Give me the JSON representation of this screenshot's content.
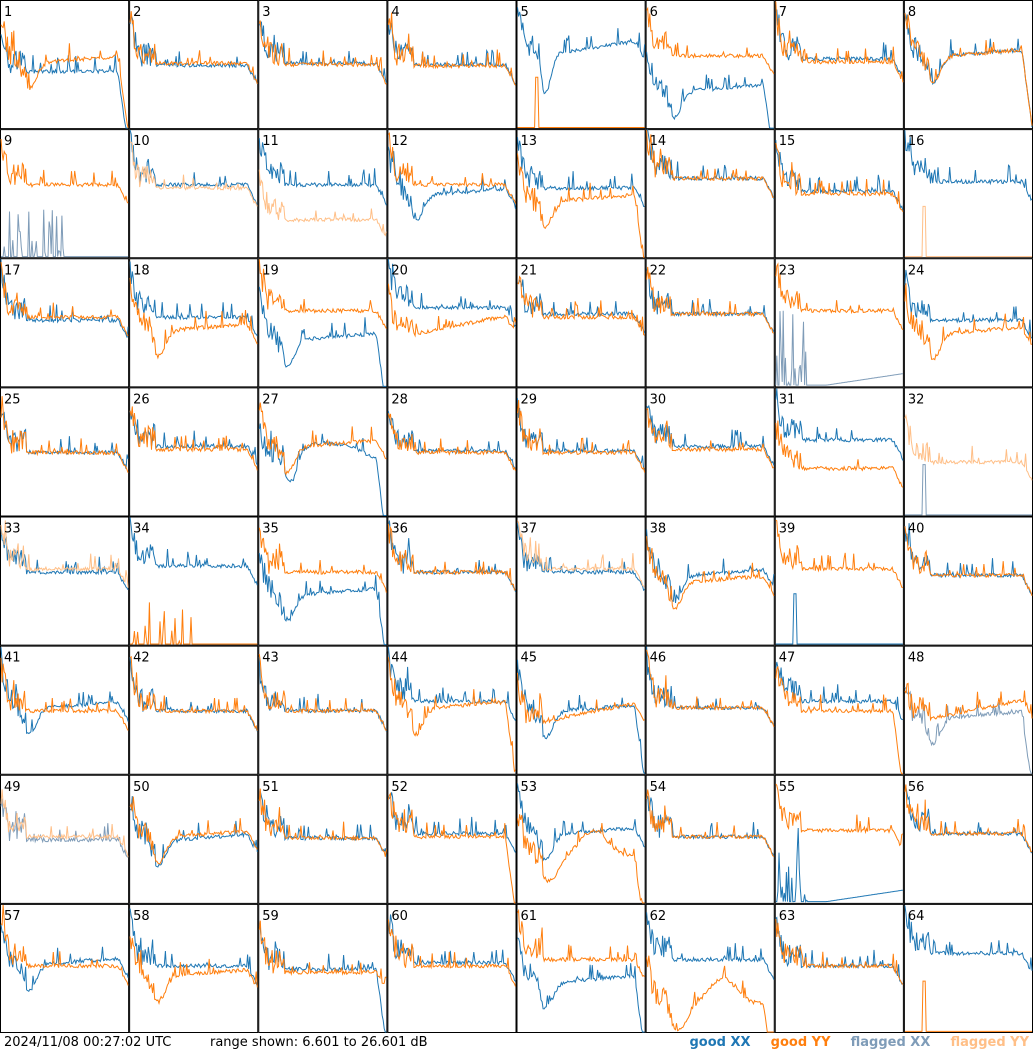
{
  "footer": {
    "timestamp": "2024/11/08 00:27:02 UTC",
    "range_text": "range shown: 6.601 to 26.601 dB"
  },
  "legend": [
    {
      "label": "good XX",
      "color": "#1f77b4"
    },
    {
      "label": "good YY",
      "color": "#ff7f0e"
    },
    {
      "label": "flagged XX",
      "color": "#7f9cb8"
    },
    {
      "label": "flagged YY",
      "color": "#ffbf87"
    }
  ],
  "chart_data": {
    "type": "line",
    "layout": "small-multiples 8x8",
    "ylim_db": [
      6.601,
      26.601
    ],
    "tiles": [
      {
        "id": "1",
        "xx": {
          "flag": false,
          "shape": "flat",
          "level": 15.5,
          "drop": true
        },
        "yy": {
          "flag": false,
          "shape": "dip",
          "level": 16.5,
          "drop": true
        }
      },
      {
        "id": "2",
        "xx": {
          "flag": false,
          "shape": "flat",
          "level": 16.5
        },
        "yy": {
          "flag": false,
          "shape": "flat",
          "level": 16.8
        }
      },
      {
        "id": "3",
        "xx": {
          "flag": false,
          "shape": "flat",
          "level": 16.8
        },
        "yy": {
          "flag": false,
          "shape": "flat",
          "level": 16.6
        }
      },
      {
        "id": "4",
        "xx": {
          "flag": false,
          "shape": "flat",
          "level": 16.6
        },
        "yy": {
          "flag": false,
          "shape": "flat",
          "level": 16.4
        }
      },
      {
        "id": "5",
        "xx": {
          "flag": false,
          "shape": "dip5",
          "level": 19.5
        },
        "yy": {
          "flag": false,
          "shape": "zero_spike",
          "level": 7.0
        }
      },
      {
        "id": "6",
        "xx": {
          "flag": false,
          "shape": "dip",
          "level": 12.0,
          "drop": true
        },
        "yy": {
          "flag": false,
          "shape": "flat",
          "level": 18.0
        }
      },
      {
        "id": "7",
        "xx": {
          "flag": false,
          "shape": "flat",
          "level": 17.5
        },
        "yy": {
          "flag": false,
          "shape": "flat",
          "level": 17.0
        }
      },
      {
        "id": "8",
        "xx": {
          "flag": false,
          "shape": "dip",
          "level": 17.5,
          "drop": true
        },
        "yy": {
          "flag": false,
          "shape": "dip",
          "level": 17.5,
          "drop": true
        }
      },
      {
        "id": "9",
        "xx": {
          "flag": true,
          "shape": "junk",
          "level": 7.0
        },
        "yy": {
          "flag": false,
          "shape": "flat",
          "level": 18.0
        }
      },
      {
        "id": "10",
        "xx": {
          "flag": false,
          "shape": "flat",
          "level": 18.0
        },
        "yy": {
          "flag": true,
          "shape": "flat",
          "level": 17.5
        }
      },
      {
        "id": "11",
        "xx": {
          "flag": false,
          "shape": "flat",
          "level": 18.0
        },
        "yy": {
          "flag": true,
          "shape": "low",
          "level": 12.5
        }
      },
      {
        "id": "12",
        "xx": {
          "flag": false,
          "shape": "dip",
          "level": 16.0
        },
        "yy": {
          "flag": false,
          "shape": "flat",
          "level": 18.0
        }
      },
      {
        "id": "13",
        "xx": {
          "flag": false,
          "shape": "flat",
          "level": 17.5
        },
        "yy": {
          "flag": false,
          "shape": "dip",
          "level": 15.0,
          "drop": true
        }
      },
      {
        "id": "14",
        "xx": {
          "flag": false,
          "shape": "flat",
          "level": 19.0
        },
        "yy": {
          "flag": false,
          "shape": "flat",
          "level": 19.0
        }
      },
      {
        "id": "15",
        "xx": {
          "flag": false,
          "shape": "flat",
          "level": 17.0
        },
        "yy": {
          "flag": false,
          "shape": "flat",
          "level": 16.6
        }
      },
      {
        "id": "16",
        "xx": {
          "flag": false,
          "shape": "flat",
          "level": 18.5
        },
        "yy": {
          "flag": true,
          "shape": "zero_spike",
          "level": 7.0
        }
      },
      {
        "id": "17",
        "xx": {
          "flag": false,
          "shape": "flat",
          "level": 17.0
        },
        "yy": {
          "flag": false,
          "shape": "flat",
          "level": 17.5
        }
      },
      {
        "id": "18",
        "xx": {
          "flag": false,
          "shape": "flat",
          "level": 17.5
        },
        "yy": {
          "flag": false,
          "shape": "dip",
          "level": 15.0
        }
      },
      {
        "id": "19",
        "xx": {
          "flag": false,
          "shape": "dip",
          "level": 13.5,
          "drop": true
        },
        "yy": {
          "flag": false,
          "shape": "flat",
          "level": 18.5
        }
      },
      {
        "id": "20",
        "xx": {
          "flag": false,
          "shape": "flat",
          "level": 19.0
        },
        "yy": {
          "flag": false,
          "shape": "rise",
          "level": 16.0
        }
      },
      {
        "id": "21",
        "xx": {
          "flag": false,
          "shape": "flat",
          "level": 18.0
        },
        "yy": {
          "flag": false,
          "shape": "flat",
          "level": 17.5
        }
      },
      {
        "id": "22",
        "xx": {
          "flag": false,
          "shape": "flat",
          "level": 18.0
        },
        "yy": {
          "flag": false,
          "shape": "flat",
          "level": 18.0
        }
      },
      {
        "id": "23",
        "xx": {
          "flag": true,
          "shape": "junk_rise",
          "level": 7.0
        },
        "yy": {
          "flag": false,
          "shape": "flat",
          "level": 18.5
        }
      },
      {
        "id": "24",
        "xx": {
          "flag": false,
          "shape": "flat",
          "level": 17.0
        },
        "yy": {
          "flag": false,
          "shape": "dip",
          "level": 14.5
        }
      },
      {
        "id": "25",
        "xx": {
          "flag": false,
          "shape": "flat",
          "level": 16.5
        },
        "yy": {
          "flag": false,
          "shape": "flat",
          "level": 16.5
        }
      },
      {
        "id": "26",
        "xx": {
          "flag": false,
          "shape": "flat",
          "level": 17.5
        },
        "yy": {
          "flag": false,
          "shape": "flat",
          "level": 17.0
        }
      },
      {
        "id": "27",
        "xx": {
          "flag": false,
          "shape": "dip27",
          "level": 14.0,
          "drop": true
        },
        "yy": {
          "flag": false,
          "shape": "dip",
          "level": 17.0
        }
      },
      {
        "id": "28",
        "xx": {
          "flag": false,
          "shape": "flat",
          "level": 16.8
        },
        "yy": {
          "flag": false,
          "shape": "flat",
          "level": 16.5
        }
      },
      {
        "id": "29",
        "xx": {
          "flag": false,
          "shape": "flat",
          "level": 16.8
        },
        "yy": {
          "flag": false,
          "shape": "flat",
          "level": 16.5
        }
      },
      {
        "id": "30",
        "xx": {
          "flag": false,
          "shape": "flat",
          "level": 17.5
        },
        "yy": {
          "flag": false,
          "shape": "flat",
          "level": 17.0
        }
      },
      {
        "id": "31",
        "xx": {
          "flag": false,
          "shape": "flat",
          "level": 18.5
        },
        "yy": {
          "flag": false,
          "shape": "low",
          "level": 14.0
        }
      },
      {
        "id": "32",
        "xx": {
          "flag": true,
          "shape": "zero_spike",
          "level": 7.0
        },
        "yy": {
          "flag": true,
          "shape": "flat",
          "level": 15.0
        }
      },
      {
        "id": "33",
        "xx": {
          "flag": false,
          "shape": "flat",
          "level": 18.0
        },
        "yy": {
          "flag": true,
          "shape": "flat",
          "level": 18.5
        }
      },
      {
        "id": "34",
        "xx": {
          "flag": false,
          "shape": "flat",
          "level": 19.0
        },
        "yy": {
          "flag": false,
          "shape": "junk",
          "level": 7.0
        }
      },
      {
        "id": "35",
        "xx": {
          "flag": false,
          "shape": "dip",
          "level": 14.0,
          "drop": true
        },
        "yy": {
          "flag": false,
          "shape": "flat",
          "level": 18.0
        }
      },
      {
        "id": "36",
        "xx": {
          "flag": false,
          "shape": "flat",
          "level": 18.0
        },
        "yy": {
          "flag": false,
          "shape": "flat",
          "level": 18.0
        }
      },
      {
        "id": "37",
        "xx": {
          "flag": false,
          "shape": "flat",
          "level": 18.0
        },
        "yy": {
          "flag": true,
          "shape": "flat",
          "level": 18.5
        }
      },
      {
        "id": "38",
        "xx": {
          "flag": false,
          "shape": "dip",
          "level": 17.0
        },
        "yy": {
          "flag": false,
          "shape": "dip",
          "level": 16.0
        }
      },
      {
        "id": "39",
        "xx": {
          "flag": false,
          "shape": "zero_spike",
          "level": 7.0
        },
        "yy": {
          "flag": false,
          "shape": "flat",
          "level": 18.5
        }
      },
      {
        "id": "40",
        "xx": {
          "flag": false,
          "shape": "flat",
          "level": 17.5
        },
        "yy": {
          "flag": false,
          "shape": "flat",
          "level": 17.5
        }
      },
      {
        "id": "41",
        "xx": {
          "flag": false,
          "shape": "dip",
          "level": 16.5
        },
        "yy": {
          "flag": false,
          "shape": "flat",
          "level": 16.5
        }
      },
      {
        "id": "42",
        "xx": {
          "flag": false,
          "shape": "flat",
          "level": 16.5
        },
        "yy": {
          "flag": false,
          "shape": "flat",
          "level": 16.5
        }
      },
      {
        "id": "43",
        "xx": {
          "flag": false,
          "shape": "flat",
          "level": 16.5
        },
        "yy": {
          "flag": false,
          "shape": "flat",
          "level": 16.5
        }
      },
      {
        "id": "44",
        "xx": {
          "flag": false,
          "shape": "flat",
          "level": 18.0
        },
        "yy": {
          "flag": false,
          "shape": "dip",
          "level": 16.5,
          "drop": true
        }
      },
      {
        "id": "45",
        "xx": {
          "flag": false,
          "shape": "dip",
          "level": 16.0,
          "drop": true
        },
        "yy": {
          "flag": false,
          "shape": "rise",
          "level": 16.0
        }
      },
      {
        "id": "46",
        "xx": {
          "flag": false,
          "shape": "flat",
          "level": 17.0
        },
        "yy": {
          "flag": false,
          "shape": "flat",
          "level": 17.0
        }
      },
      {
        "id": "47",
        "xx": {
          "flag": false,
          "shape": "flat",
          "level": 18.0
        },
        "yy": {
          "flag": false,
          "shape": "flat",
          "level": 16.5,
          "drop": true
        }
      },
      {
        "id": "48",
        "xx": {
          "flag": true,
          "shape": "dip",
          "level": 15.0,
          "drop": true
        },
        "yy": {
          "flag": false,
          "shape": "rise",
          "level": 16.5
        }
      },
      {
        "id": "49",
        "xx": {
          "flag": true,
          "shape": "flat",
          "level": 16.5
        },
        "yy": {
          "flag": true,
          "shape": "flat",
          "level": 17.0
        }
      },
      {
        "id": "50",
        "xx": {
          "flag": false,
          "shape": "dip",
          "level": 16.0
        },
        "yy": {
          "flag": false,
          "shape": "dip",
          "level": 16.5
        }
      },
      {
        "id": "51",
        "xx": {
          "flag": false,
          "shape": "flat",
          "level": 16.8
        },
        "yy": {
          "flag": false,
          "shape": "flat",
          "level": 16.8
        }
      },
      {
        "id": "52",
        "xx": {
          "flag": false,
          "shape": "flat",
          "level": 17.5
        },
        "yy": {
          "flag": false,
          "shape": "flat",
          "level": 17.0,
          "drop": true
        }
      },
      {
        "id": "53",
        "xx": {
          "flag": false,
          "shape": "dip",
          "level": 17.0
        },
        "yy": {
          "flag": false,
          "shape": "dip53",
          "level": 14.0,
          "drop": true
        }
      },
      {
        "id": "54",
        "xx": {
          "flag": false,
          "shape": "flat",
          "level": 17.0
        },
        "yy": {
          "flag": false,
          "shape": "flat",
          "level": 17.0
        }
      },
      {
        "id": "55",
        "xx": {
          "flag": false,
          "shape": "junk_rise",
          "level": 7.0
        },
        "yy": {
          "flag": false,
          "shape": "flat",
          "level": 18.0
        }
      },
      {
        "id": "56",
        "xx": {
          "flag": false,
          "shape": "flat",
          "level": 17.5
        },
        "yy": {
          "flag": false,
          "shape": "flat",
          "level": 17.5
        }
      },
      {
        "id": "57",
        "xx": {
          "flag": false,
          "shape": "dip",
          "level": 16.8
        },
        "yy": {
          "flag": false,
          "shape": "flat",
          "level": 17.0
        }
      },
      {
        "id": "58",
        "xx": {
          "flag": false,
          "shape": "flat",
          "level": 17.0
        },
        "yy": {
          "flag": false,
          "shape": "dip",
          "level": 15.0
        }
      },
      {
        "id": "59",
        "xx": {
          "flag": false,
          "shape": "flat",
          "level": 16.5,
          "drop": true
        },
        "yy": {
          "flag": false,
          "shape": "flat",
          "level": 16.0
        }
      },
      {
        "id": "60",
        "xx": {
          "flag": false,
          "shape": "flat",
          "level": 17.5
        },
        "yy": {
          "flag": false,
          "shape": "flat",
          "level": 17.0
        }
      },
      {
        "id": "61",
        "xx": {
          "flag": false,
          "shape": "dip",
          "level": 14.0,
          "drop": true
        },
        "yy": {
          "flag": false,
          "shape": "flat",
          "level": 18.0
        }
      },
      {
        "id": "62",
        "xx": {
          "flag": false,
          "shape": "flat",
          "level": 18.0
        },
        "yy": {
          "flag": false,
          "shape": "dip53",
          "level": 11.0,
          "drop": true
        }
      },
      {
        "id": "63",
        "xx": {
          "flag": false,
          "shape": "flat",
          "level": 17.0
        },
        "yy": {
          "flag": false,
          "shape": "flat",
          "level": 17.0
        }
      },
      {
        "id": "64",
        "xx": {
          "flag": false,
          "shape": "flat",
          "level": 19.0
        },
        "yy": {
          "flag": false,
          "shape": "zero_spike",
          "level": 7.0
        }
      }
    ]
  }
}
